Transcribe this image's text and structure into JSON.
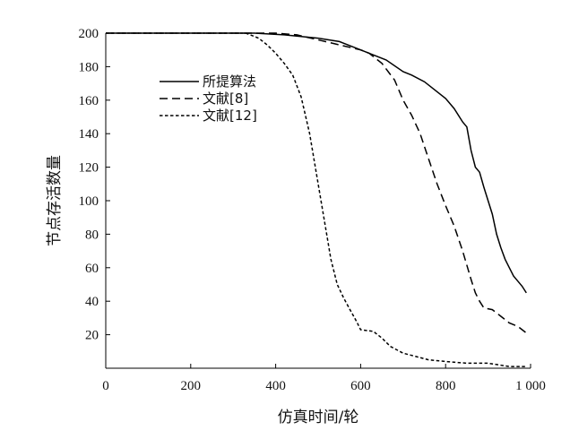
{
  "chart_data": {
    "type": "line",
    "title": "",
    "xlabel": "仿真时间/轮",
    "ylabel": "节点存活数量",
    "xlim": [
      0,
      1000
    ],
    "ylim": [
      0,
      200
    ],
    "xticks": [
      0,
      200,
      400,
      600,
      800,
      1000
    ],
    "xtick_labels": [
      "0",
      "200",
      "400",
      "600",
      "800",
      "1 000"
    ],
    "yticks": [
      20,
      40,
      60,
      80,
      100,
      120,
      140,
      160,
      180,
      200
    ],
    "ytick_labels": [
      "20",
      "40",
      "60",
      "80",
      "100",
      "120",
      "140",
      "160",
      "180",
      "200"
    ],
    "grid": false,
    "legend_position": "top-left",
    "series": [
      {
        "name": "所提算法",
        "style": "solid",
        "color": "#000000",
        "points": [
          [
            0,
            200
          ],
          [
            350,
            200
          ],
          [
            420,
            199
          ],
          [
            500,
            197
          ],
          [
            550,
            195
          ],
          [
            600,
            190
          ],
          [
            630,
            187
          ],
          [
            660,
            184
          ],
          [
            700,
            177
          ],
          [
            720,
            175
          ],
          [
            750,
            171
          ],
          [
            770,
            167
          ],
          [
            800,
            161
          ],
          [
            820,
            155
          ],
          [
            840,
            147
          ],
          [
            850,
            144
          ],
          [
            860,
            130
          ],
          [
            870,
            120
          ],
          [
            880,
            117
          ],
          [
            890,
            108
          ],
          [
            900,
            100
          ],
          [
            910,
            92
          ],
          [
            920,
            80
          ],
          [
            930,
            72
          ],
          [
            940,
            65
          ],
          [
            950,
            60
          ],
          [
            960,
            55
          ],
          [
            970,
            52
          ],
          [
            980,
            49
          ],
          [
            990,
            45
          ]
        ]
      },
      {
        "name": "文献[8]",
        "style": "dashed",
        "color": "#000000",
        "points": [
          [
            0,
            200
          ],
          [
            400,
            200
          ],
          [
            450,
            199
          ],
          [
            500,
            196
          ],
          [
            550,
            193
          ],
          [
            600,
            190
          ],
          [
            620,
            188
          ],
          [
            650,
            182
          ],
          [
            680,
            172
          ],
          [
            700,
            160
          ],
          [
            720,
            151
          ],
          [
            740,
            140
          ],
          [
            760,
            125
          ],
          [
            780,
            110
          ],
          [
            800,
            97
          ],
          [
            820,
            85
          ],
          [
            840,
            70
          ],
          [
            860,
            53
          ],
          [
            870,
            45
          ],
          [
            880,
            40
          ],
          [
            890,
            36
          ],
          [
            910,
            35
          ],
          [
            930,
            31
          ],
          [
            950,
            27
          ],
          [
            970,
            25
          ],
          [
            990,
            21
          ]
        ]
      },
      {
        "name": "文献[12]",
        "style": "dotted",
        "color": "#000000",
        "points": [
          [
            0,
            200
          ],
          [
            330,
            200
          ],
          [
            360,
            197
          ],
          [
            380,
            193
          ],
          [
            400,
            188
          ],
          [
            420,
            182
          ],
          [
            440,
            175
          ],
          [
            460,
            162
          ],
          [
            480,
            140
          ],
          [
            500,
            110
          ],
          [
            520,
            80
          ],
          [
            530,
            65
          ],
          [
            545,
            50
          ],
          [
            560,
            42
          ],
          [
            575,
            35
          ],
          [
            590,
            28
          ],
          [
            600,
            23
          ],
          [
            630,
            22
          ],
          [
            650,
            18
          ],
          [
            670,
            13
          ],
          [
            700,
            9
          ],
          [
            730,
            7
          ],
          [
            760,
            5
          ],
          [
            800,
            4
          ],
          [
            850,
            3
          ],
          [
            900,
            3
          ],
          [
            950,
            1
          ],
          [
            990,
            1
          ]
        ]
      }
    ]
  }
}
